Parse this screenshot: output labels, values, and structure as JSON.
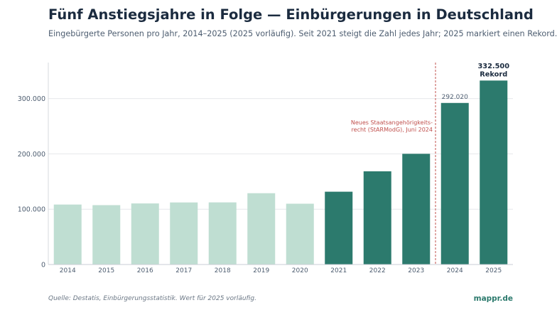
{
  "title": "Fünf Anstiegsjahre in Folge — Einbürgerungen in Deutschland",
  "subtitle": "Eingebürgerte Personen pro Jahr, 2014–2025 (2025 vorläufig). Seit 2021 steigt die Zahl jedes Jahr; 2025 markiert einen Rekord.",
  "source": "Quelle: Destatis, Einbürgerungsstatistik. Wert für 2025 vorläufig.",
  "brand": "mappr.de",
  "colors": {
    "light_bar": "#bfded2",
    "dark_bar": "#2c7a6d",
    "marker": "#c0504d",
    "axis_text": "#4d5d70",
    "grid": "#e6e8eb"
  },
  "chart_data": {
    "type": "bar",
    "categories": [
      "2014",
      "2015",
      "2016",
      "2017",
      "2018",
      "2019",
      "2020",
      "2021",
      "2022",
      "2023",
      "2024",
      "2025"
    ],
    "values": [
      108400,
      107300,
      110400,
      112200,
      112300,
      128900,
      109900,
      131600,
      168500,
      200100,
      292020,
      332500
    ],
    "highlight_from_index": 7,
    "ylim": [
      0,
      365000
    ],
    "yticks": [
      0,
      100000,
      200000,
      300000
    ],
    "ytick_labels": [
      "0",
      "100.000",
      "200.000",
      "300.000"
    ],
    "xlabel": "",
    "ylabel": "",
    "grid": true,
    "data_labels": [
      {
        "index": 10,
        "text": "292.020",
        "bold": false
      },
      {
        "index": 11,
        "text": "332.500",
        "bold": true
      },
      {
        "index": 11,
        "text": "Rekord",
        "bold": true
      }
    ],
    "annotation": {
      "between_categories": [
        "2023",
        "2024"
      ],
      "lines": [
        "Neues Staatsangehörigkeits-",
        "recht (StARModG), Juni 2024"
      ]
    }
  }
}
